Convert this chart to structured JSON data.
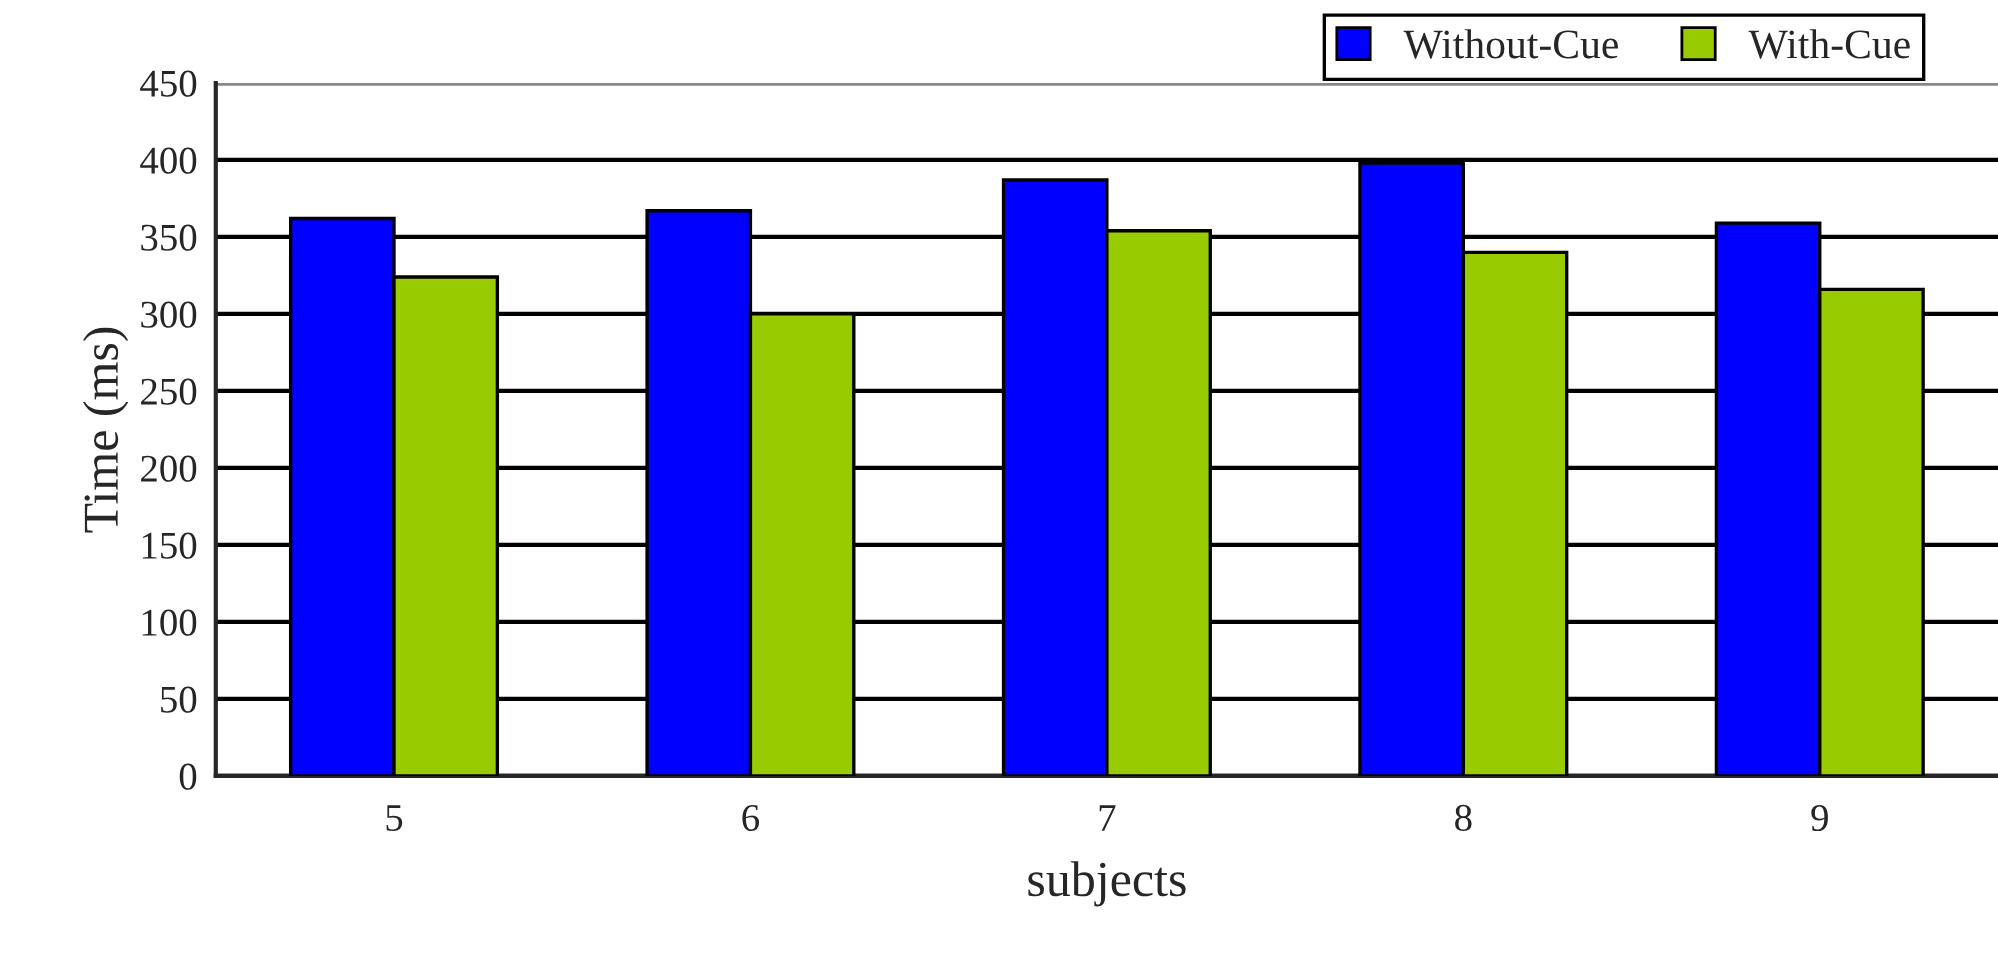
{
  "chart_data": {
    "type": "bar",
    "xlabel": "subjects",
    "ylabel": "Time (ms)",
    "categories": [
      "5",
      "6",
      "7",
      "8",
      "9"
    ],
    "series": [
      {
        "name": "Without-Cue",
        "color": "#0000ff",
        "values": [
          362,
          367,
          387,
          398,
          359
        ]
      },
      {
        "name": "With-Cue",
        "color": "#99cc00",
        "values": [
          324,
          300,
          354,
          340,
          316
        ]
      }
    ],
    "ylim": [
      0,
      450
    ],
    "yticks": [
      0,
      50,
      100,
      150,
      200,
      250,
      300,
      350,
      400,
      450
    ],
    "grid": "y",
    "legend": "top right"
  }
}
